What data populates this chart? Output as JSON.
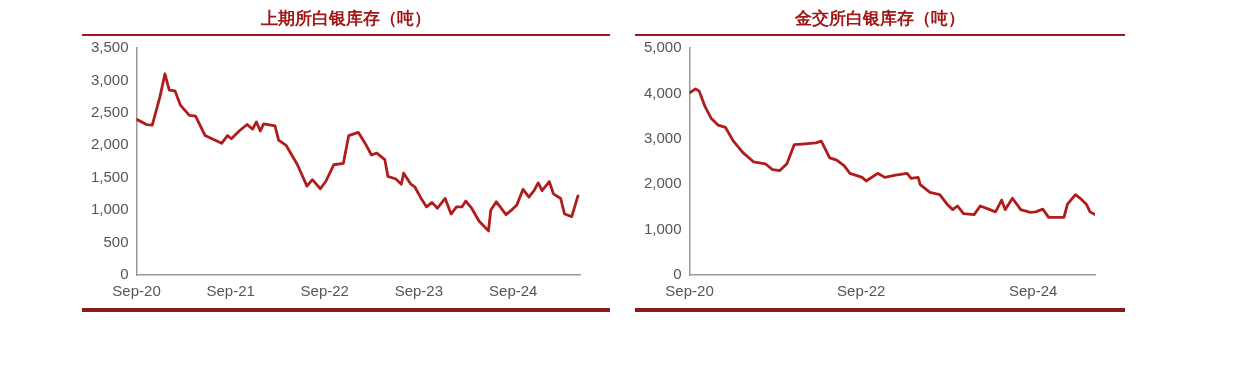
{
  "chart_data": [
    {
      "type": "line",
      "title": "上期所白银库存（吨）",
      "x": [
        "2020-09-01",
        "2020-10-10",
        "2020-11-01",
        "2020-12-01",
        "2020-12-20",
        "2021-01-06",
        "2021-01-28",
        "2021-02-18",
        "2021-03-25",
        "2021-04-18",
        "2021-05-25",
        "2021-07-01",
        "2021-07-28",
        "2021-08-20",
        "2021-09-04",
        "2021-10-04",
        "2021-11-04",
        "2021-11-25",
        "2021-12-10",
        "2021-12-25",
        "2022-01-07",
        "2022-02-20",
        "2022-03-06",
        "2022-04-04",
        "2022-05-18",
        "2022-06-24",
        "2022-07-15",
        "2022-08-15",
        "2022-09-06",
        "2022-10-06",
        "2022-11-12",
        "2022-12-03",
        "2023-01-09",
        "2023-02-09",
        "2023-03-01",
        "2023-03-22",
        "2023-04-22",
        "2023-05-04",
        "2023-06-04",
        "2023-06-25",
        "2023-07-04",
        "2023-08-01",
        "2023-08-16",
        "2023-09-07",
        "2023-10-01",
        "2023-10-22",
        "2023-11-12",
        "2023-12-12",
        "2024-01-04",
        "2024-01-25",
        "2024-02-15",
        "2024-03-01",
        "2024-03-22",
        "2024-04-22",
        "2024-05-28",
        "2024-06-06",
        "2024-06-27",
        "2024-08-04",
        "2024-08-25",
        "2024-09-15",
        "2024-10-09",
        "2024-11-01",
        "2024-11-22",
        "2024-12-07",
        "2024-12-22",
        "2025-01-19",
        "2025-02-04",
        "2025-03-04",
        "2025-03-19",
        "2025-04-16",
        "2025-05-10"
      ],
      "series": [
        {
          "color": "#b01c1c",
          "values": [
            2400,
            2320,
            2310,
            2750,
            3100,
            2850,
            2840,
            2620,
            2460,
            2450,
            2150,
            2080,
            2030,
            2150,
            2100,
            2220,
            2320,
            2250,
            2360,
            2220,
            2330,
            2300,
            2080,
            2000,
            1700,
            1370,
            1470,
            1330,
            1450,
            1700,
            1720,
            2150,
            2200,
            2000,
            1850,
            1880,
            1780,
            1520,
            1480,
            1400,
            1570,
            1400,
            1360,
            1200,
            1050,
            1120,
            1030,
            1180,
            940,
            1050,
            1050,
            1140,
            1040,
            830,
            680,
            1000,
            1130,
            930,
            1000,
            1080,
            1320,
            1200,
            1310,
            1420,
            1300,
            1440,
            1250,
            1180,
            940,
            900,
            1220
          ]
        }
      ],
      "xlim": [
        "2020-09-01",
        "2025-05-18"
      ],
      "xticks": [
        {
          "value": "2020-09-01",
          "label": "Sep-20"
        },
        {
          "value": "2021-09-01",
          "label": "Sep-21"
        },
        {
          "value": "2022-09-01",
          "label": "Sep-22"
        },
        {
          "value": "2023-09-01",
          "label": "Sep-23"
        },
        {
          "value": "2024-09-01",
          "label": "Sep-24"
        }
      ],
      "ylim": [
        0,
        3500
      ],
      "yticks": [
        {
          "value": 0,
          "label": "0"
        },
        {
          "value": 500,
          "label": "500"
        },
        {
          "value": 1000,
          "label": "1,000"
        },
        {
          "value": 1500,
          "label": "1,500"
        },
        {
          "value": 2000,
          "label": "2,000"
        },
        {
          "value": 2500,
          "label": "2,500"
        },
        {
          "value": 3000,
          "label": "3,000"
        },
        {
          "value": 3500,
          "label": "3,500"
        }
      ],
      "grid": false,
      "legend": false,
      "marker": "none",
      "line_style": "solid"
    },
    {
      "type": "line",
      "title": "金交所白银库存（吨）",
      "x": [
        "2020-09-01",
        "2020-09-27",
        "2020-10-12",
        "2020-11-05",
        "2020-12-01",
        "2021-01-01",
        "2021-02-01",
        "2021-03-05",
        "2021-04-15",
        "2021-06-01",
        "2021-07-20",
        "2021-08-20",
        "2021-09-20",
        "2021-10-20",
        "2021-11-20",
        "2022-01-05",
        "2022-02-20",
        "2022-03-15",
        "2022-04-20",
        "2022-05-20",
        "2022-06-20",
        "2022-07-15",
        "2022-09-05",
        "2022-09-22",
        "2022-11-10",
        "2022-12-10",
        "2023-01-25",
        "2023-03-15",
        "2023-04-01",
        "2023-05-01",
        "2023-05-10",
        "2023-06-20",
        "2023-08-01",
        "2023-09-01",
        "2023-09-25",
        "2023-10-15",
        "2023-11-10",
        "2023-12-25",
        "2024-01-20",
        "2024-03-01",
        "2024-03-25",
        "2024-04-20",
        "2024-05-05",
        "2024-06-05",
        "2024-07-10",
        "2024-08-20",
        "2024-09-12",
        "2024-10-12",
        "2024-11-06",
        "2025-01-10",
        "2025-01-25",
        "2025-02-28",
        "2025-03-20",
        "2025-04-15",
        "2025-05-01",
        "2025-05-22"
      ],
      "series": [
        {
          "color": "#b01c1c",
          "values": [
            4010,
            4100,
            4050,
            3720,
            3460,
            3300,
            3250,
            2960,
            2700,
            2490,
            2450,
            2320,
            2300,
            2450,
            2870,
            2890,
            2910,
            2950,
            2580,
            2530,
            2410,
            2240,
            2150,
            2070,
            2240,
            2150,
            2200,
            2240,
            2130,
            2150,
            1990,
            1820,
            1770,
            1560,
            1440,
            1520,
            1350,
            1330,
            1520,
            1440,
            1390,
            1650,
            1440,
            1690,
            1440,
            1380,
            1390,
            1450,
            1270,
            1270,
            1560,
            1770,
            1690,
            1560,
            1390,
            1330
          ]
        }
      ],
      "xlim": [
        "2020-09-01",
        "2025-05-22"
      ],
      "xticks": [
        {
          "value": "2020-09-01",
          "label": "Sep-20"
        },
        {
          "value": "2022-09-01",
          "label": "Sep-22"
        },
        {
          "value": "2024-09-01",
          "label": "Sep-24"
        }
      ],
      "ylim": [
        0,
        5000
      ],
      "yticks": [
        {
          "value": 0,
          "label": "0"
        },
        {
          "value": 1000,
          "label": "1,000"
        },
        {
          "value": 2000,
          "label": "2,000"
        },
        {
          "value": 3000,
          "label": "3,000"
        },
        {
          "value": 4000,
          "label": "4,000"
        },
        {
          "value": 5000,
          "label": "5,000"
        }
      ],
      "grid": false,
      "legend": false,
      "marker": "none",
      "line_style": "solid"
    }
  ]
}
